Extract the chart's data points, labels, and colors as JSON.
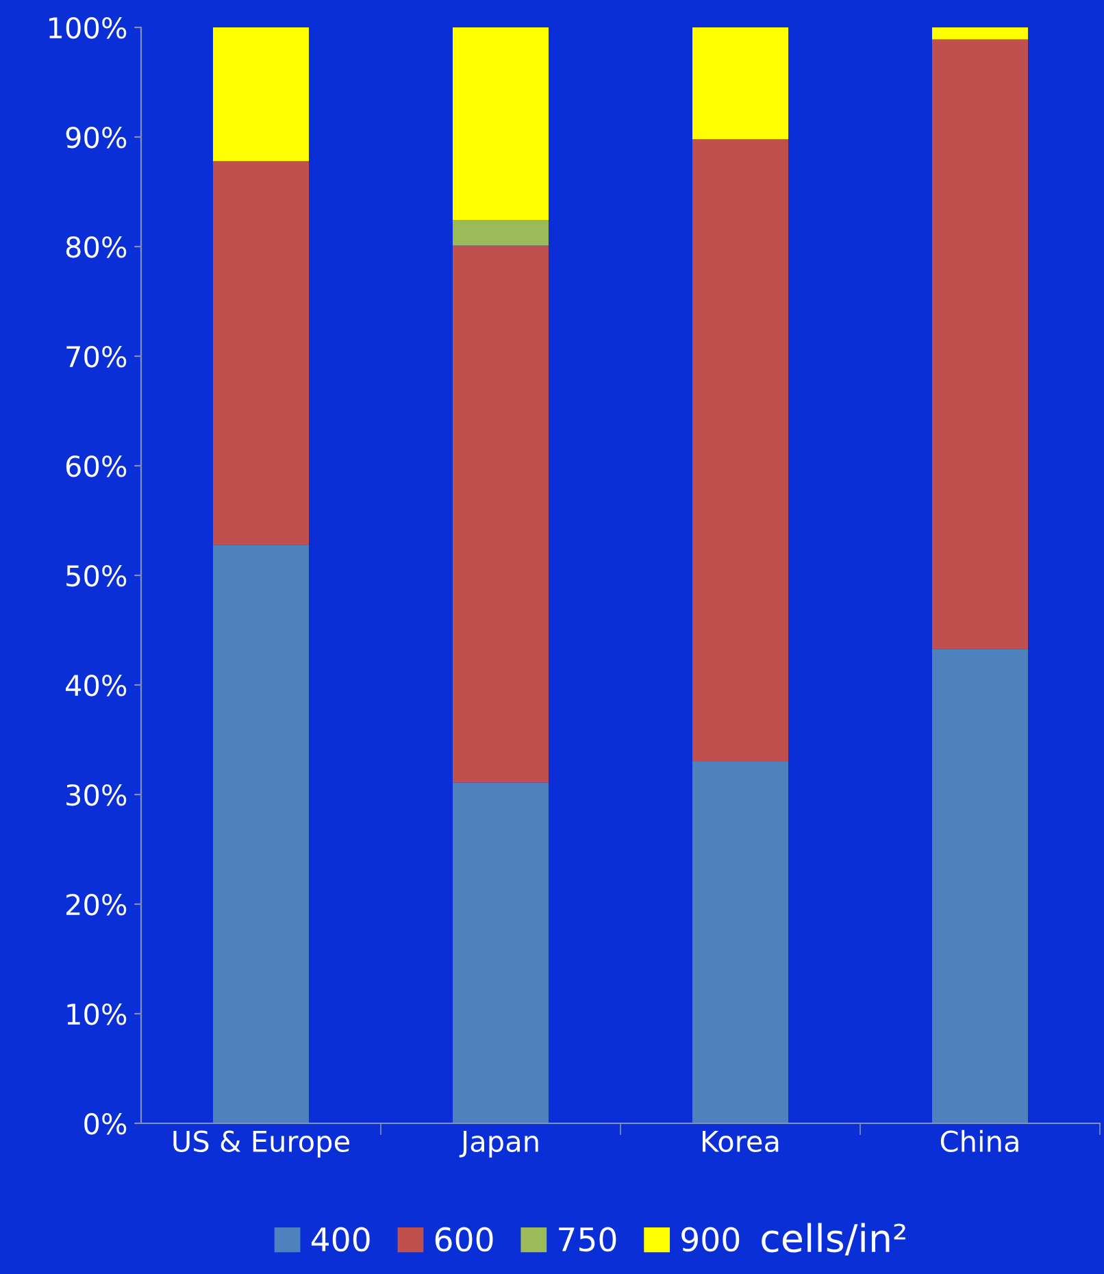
{
  "chart_data": {
    "type": "bar",
    "stacked": true,
    "categories": [
      "US & Europe",
      "Japan",
      "Korea",
      "China"
    ],
    "series": [
      {
        "name": "400",
        "color": "#4f81bd",
        "values": [
          52.8,
          31.1,
          33.0,
          43.3
        ]
      },
      {
        "name": "600",
        "color": "#c0504d",
        "values": [
          35.0,
          49.0,
          56.8,
          55.6
        ]
      },
      {
        "name": "750",
        "color": "#9bbb59",
        "values": [
          0,
          2.3,
          0,
          0
        ]
      },
      {
        "name": "900",
        "color": "#ffff00",
        "values": [
          12.2,
          17.6,
          10.2,
          1.1
        ]
      }
    ],
    "ylim": [
      0,
      100
    ],
    "yticks": [
      {
        "value": 0,
        "label": "0%"
      },
      {
        "value": 10,
        "label": "10%"
      },
      {
        "value": 20,
        "label": "20%"
      },
      {
        "value": 30,
        "label": "30%"
      },
      {
        "value": 40,
        "label": "40%"
      },
      {
        "value": 50,
        "label": "50%"
      },
      {
        "value": 60,
        "label": "60%"
      },
      {
        "value": 70,
        "label": "70%"
      },
      {
        "value": 80,
        "label": "80%"
      },
      {
        "value": 90,
        "label": "90%"
      },
      {
        "value": 100,
        "label": "100%"
      }
    ],
    "grid": false,
    "legend": "bottom",
    "legend_title": "cells/in²"
  }
}
